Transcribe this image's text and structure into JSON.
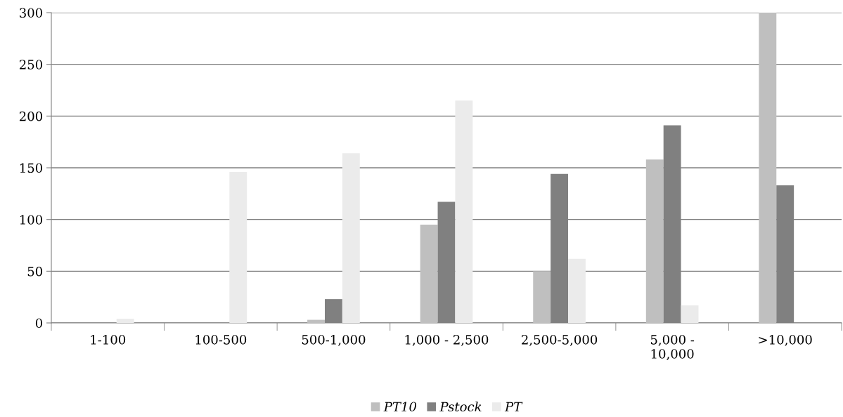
{
  "chart_data": {
    "type": "bar",
    "categories": [
      "1-100",
      "100-500",
      "500-1,000",
      "1,000 - 2,500",
      "2,500-5,000",
      "5,000 -\n10,000",
      ">10,000"
    ],
    "series": [
      {
        "name": "PT10",
        "color": "#bfbfbf",
        "values": [
          0,
          0,
          3,
          95,
          50,
          158,
          300
        ]
      },
      {
        "name": "Pstock",
        "color": "#808080",
        "values": [
          0,
          0,
          23,
          117,
          144,
          191,
          133
        ]
      },
      {
        "name": "PT",
        "color": "#ebebeb",
        "values": [
          4,
          146,
          164,
          215,
          62,
          17,
          0
        ]
      }
    ],
    "ylim": [
      0,
      300
    ],
    "yticks": [
      0,
      50,
      100,
      150,
      200,
      250,
      300
    ],
    "grid": "y",
    "legend": "bottom"
  }
}
